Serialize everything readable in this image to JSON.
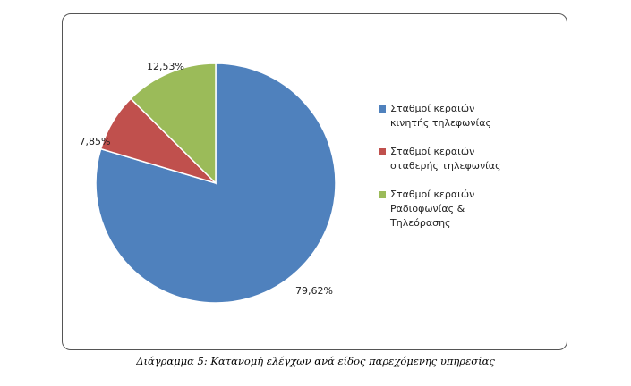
{
  "chart_data": {
    "type": "pie",
    "slices": [
      {
        "label_lines": [
          "Σταθμοί κεραιών",
          "κινητής τηλεφωνίας"
        ],
        "value": 79.62,
        "value_label": "79,62%",
        "color": "#4F81BD"
      },
      {
        "label_lines": [
          "Σταθμοί κεραιών",
          "σταθερής τηλεφωνίας"
        ],
        "value": 7.85,
        "value_label": "7,85%",
        "color": "#C0504D"
      },
      {
        "label_lines": [
          "Σταθμοί κεραιών",
          "Ραδιοφωνίας &",
          "Τηλεόρασης"
        ],
        "value": 12.53,
        "value_label": "12,53%",
        "color": "#9BBB59"
      }
    ],
    "legend_position": "right",
    "start_angle": "12 o'clock",
    "direction": "clockwise"
  },
  "caption": "Διάγραμμα 5: Κατανομή ελέγχων ανά είδος παρεχόμενης υπηρεσίας"
}
